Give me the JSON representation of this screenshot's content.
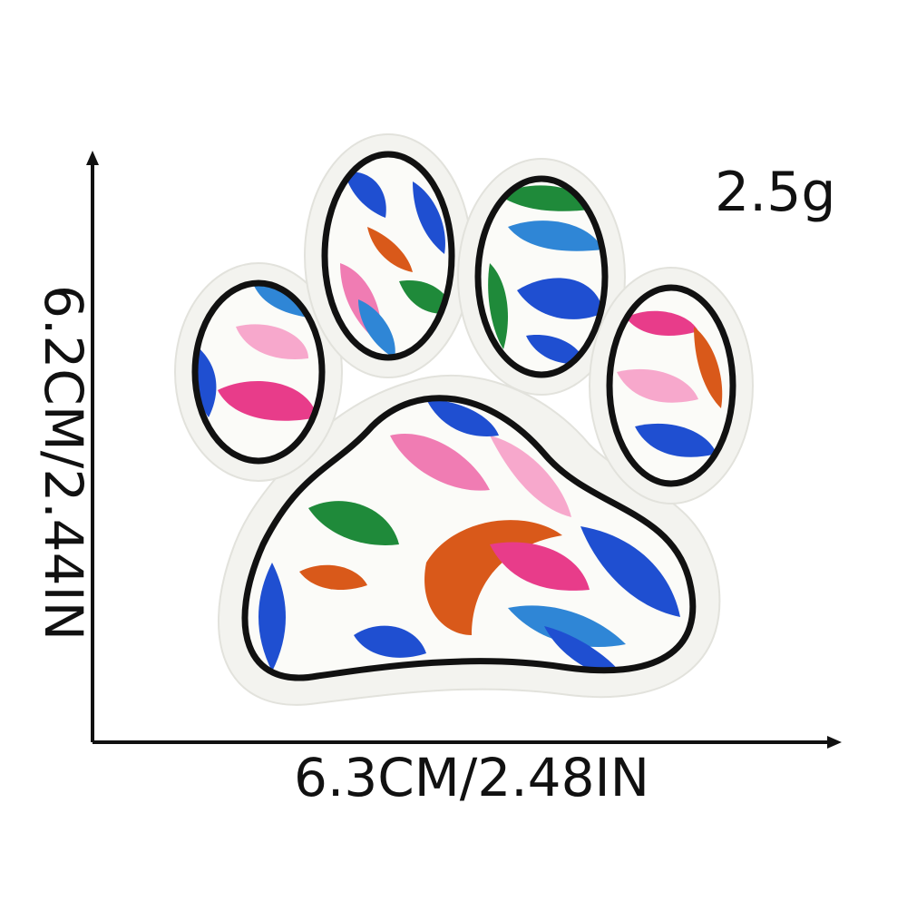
{
  "product": {
    "weight_label": "2.5g",
    "width_label": "6.3CM/2.48IN",
    "height_label": "6.2CM/2.44IN",
    "colors": {
      "patch_fill": "#fbfbf8",
      "outline": "#111111",
      "blue": "#1f4fd1",
      "sky": "#2f86d6",
      "pink": "#f07cb3",
      "light_pink": "#f7a8cc",
      "magenta": "#e83c8a",
      "green": "#1f8a3a",
      "orange": "#d9591a"
    }
  }
}
